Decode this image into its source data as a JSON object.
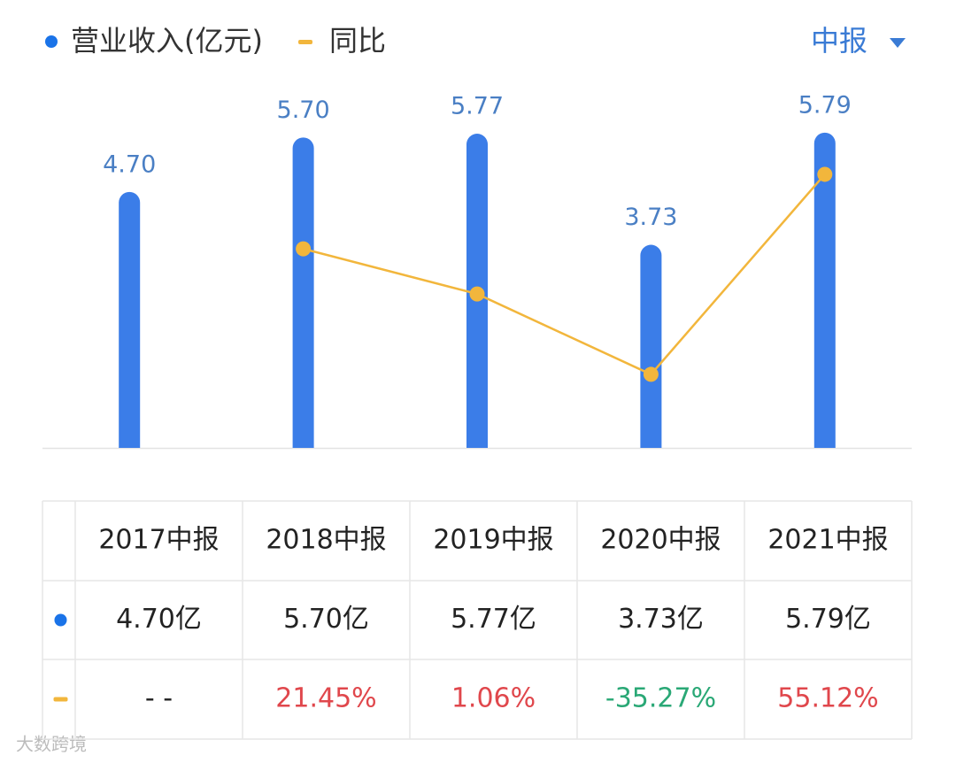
{
  "chart_data": {
    "type": "bar-line",
    "legend_position": "top-left",
    "period": "中报",
    "categories": [
      "2017中报",
      "2018中报",
      "2019中报",
      "2020中报",
      "2021中报"
    ],
    "series": [
      {
        "name": "营业收入(亿元)",
        "type": "bar",
        "color": "#3b7de8",
        "values": [
          4.7,
          5.7,
          5.77,
          3.73,
          5.79
        ],
        "value_labels": [
          "4.70",
          "5.70",
          "5.77",
          "3.73",
          "5.79"
        ]
      },
      {
        "name": "同比",
        "type": "line",
        "axis": "y2",
        "color": "#f2b63c",
        "values": [
          null,
          21.45,
          1.06,
          -35.27,
          55.12
        ]
      }
    ],
    "ylim": [
      0,
      6.6
    ],
    "y2lim": [
      -68.5,
      93.9
    ]
  },
  "table": {
    "rows": [
      [
        "4.70亿",
        "5.70亿",
        "5.77亿",
        "3.73亿",
        "5.79亿"
      ],
      [
        "- -",
        "21.45%",
        "1.06%",
        "-35.27%",
        "55.12%"
      ]
    ]
  },
  "watermark": "大数跨境"
}
